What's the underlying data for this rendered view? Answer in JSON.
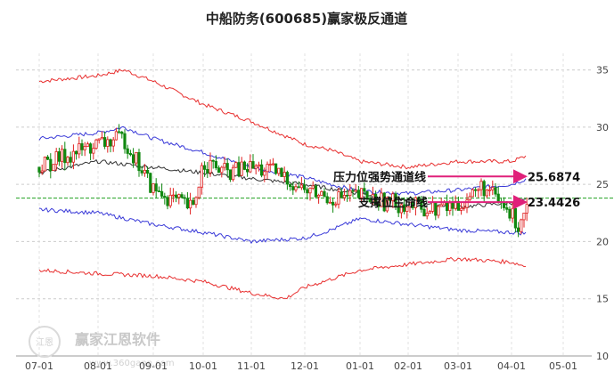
{
  "chart_data": {
    "type": "candlestick-with-channel",
    "title": "中船防务(600685)赢家极反通道",
    "x_ticks": [
      "07-01",
      "08-01",
      "09-01",
      "10-01",
      "11-01",
      "12-01",
      "01-01",
      "02-01",
      "03-01",
      "04-01",
      "05-01"
    ],
    "y_ticks": [
      10,
      15,
      20,
      25,
      30,
      35
    ],
    "ylim": [
      10,
      38
    ],
    "grid": true,
    "series": [
      {
        "name": "",
        "color": "#e83030",
        "x": [
          "07-01",
          "08-01",
          "08-15",
          "09-01",
          "10-01",
          "11-01",
          "12-01",
          "12-15",
          "01-01",
          "02-01",
          "03-01",
          "04-01",
          "04-10"
        ],
        "values": [
          34,
          34.5,
          35,
          34,
          32,
          30.5,
          28.5,
          28,
          27,
          26.5,
          27,
          27,
          27.5
        ]
      },
      {
        "name": "",
        "color": "#3a3ad8",
        "x": [
          "07-01",
          "08-01",
          "08-15",
          "09-01",
          "10-01",
          "11-01",
          "12-01",
          "12-15",
          "01-01",
          "02-01",
          "03-01",
          "04-01",
          "04-10"
        ],
        "values": [
          29,
          29.5,
          30,
          29,
          27.8,
          26.5,
          25.6,
          25,
          24.4,
          24.2,
          24.5,
          25,
          25.5
        ]
      },
      {
        "name": "",
        "color": "#333333",
        "x": [
          "07-01",
          "08-01",
          "09-01",
          "10-01",
          "11-01",
          "12-01",
          "01-01",
          "02-01",
          "03-01",
          "04-01",
          "04-10"
        ],
        "values": [
          26,
          27,
          26.5,
          26,
          25.5,
          25,
          24.2,
          23.6,
          23,
          23.4,
          23.6
        ]
      },
      {
        "name": "",
        "color": "#3a3ad8",
        "x": [
          "07-01",
          "08-01",
          "09-01",
          "10-01",
          "11-01",
          "12-01",
          "12-15",
          "01-01",
          "02-01",
          "03-01",
          "04-01",
          "04-10"
        ],
        "values": [
          22.8,
          22.5,
          21.5,
          20.8,
          20,
          20.3,
          21,
          22,
          21.5,
          21,
          20.8,
          20.7
        ]
      },
      {
        "name": "",
        "color": "#e83030",
        "x": [
          "07-01",
          "08-01",
          "09-01",
          "10-01",
          "11-01",
          "11-20",
          "12-01",
          "01-01",
          "02-01",
          "03-01",
          "04-01",
          "04-10"
        ],
        "values": [
          17.5,
          17.2,
          17,
          16.5,
          15.5,
          15,
          16,
          17.5,
          18,
          18.5,
          18.2,
          17.8
        ]
      }
    ],
    "price_points": {
      "x": [
        "07-01",
        "07-15",
        "08-01",
        "08-15",
        "09-01",
        "09-15",
        "09-25",
        "10-01",
        "10-15",
        "11-01",
        "11-15",
        "12-01",
        "12-15",
        "01-01",
        "01-15",
        "02-01",
        "02-15",
        "03-01",
        "03-15",
        "04-01",
        "04-05",
        "04-10"
      ],
      "close": [
        26.5,
        27.5,
        28.5,
        29,
        24.5,
        23.5,
        22.8,
        27,
        26,
        26.5,
        26,
        24.5,
        23.8,
        24,
        23.5,
        23.2,
        22.8,
        23.2,
        24.8,
        22.3,
        21.5,
        23.4
      ]
    },
    "reference_line": {
      "value": 23.8,
      "color": "#20a020"
    },
    "annotations": [
      {
        "label": "压力位强势通道线",
        "value_label": "25.6874",
        "value": 25.6874
      },
      {
        "label": "支撑位生命线",
        "value_label": "23.4426",
        "value": 23.4426
      }
    ]
  },
  "watermark": {
    "text": "赢家江恩软件",
    "sub": "www.360gann.com",
    "logo_text": "江恩"
  }
}
